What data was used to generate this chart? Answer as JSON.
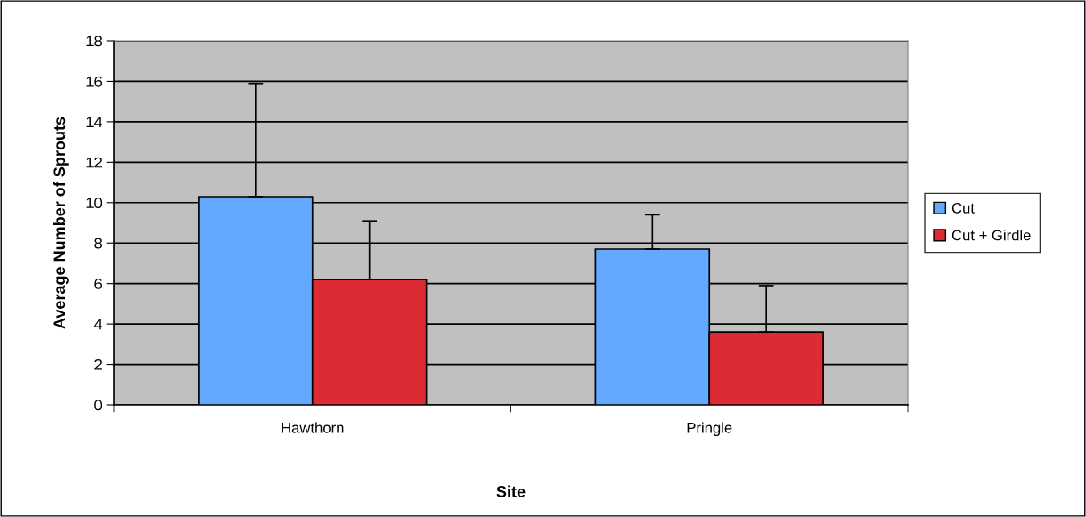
{
  "chart_data": {
    "type": "bar",
    "xlabel": "Site",
    "ylabel": "Average Number of Sprouts",
    "categories": [
      "Hawthorn",
      "Pringle"
    ],
    "series": [
      {
        "name": "Cut",
        "color": "#63a9ff",
        "values": [
          10.3,
          7.7
        ],
        "errors": [
          [
            10.3,
            15.9
          ],
          [
            7.7,
            9.4
          ]
        ]
      },
      {
        "name": "Cut + Girdle",
        "color": "#dd2b33",
        "values": [
          6.2,
          3.6
        ],
        "errors": [
          [
            6.2,
            9.1
          ],
          [
            3.6,
            5.9
          ]
        ]
      }
    ],
    "ylim": [
      0,
      18
    ],
    "yticks": [
      0,
      2,
      4,
      6,
      8,
      10,
      12,
      14,
      16,
      18
    ],
    "grid": "y",
    "legend": "right"
  }
}
